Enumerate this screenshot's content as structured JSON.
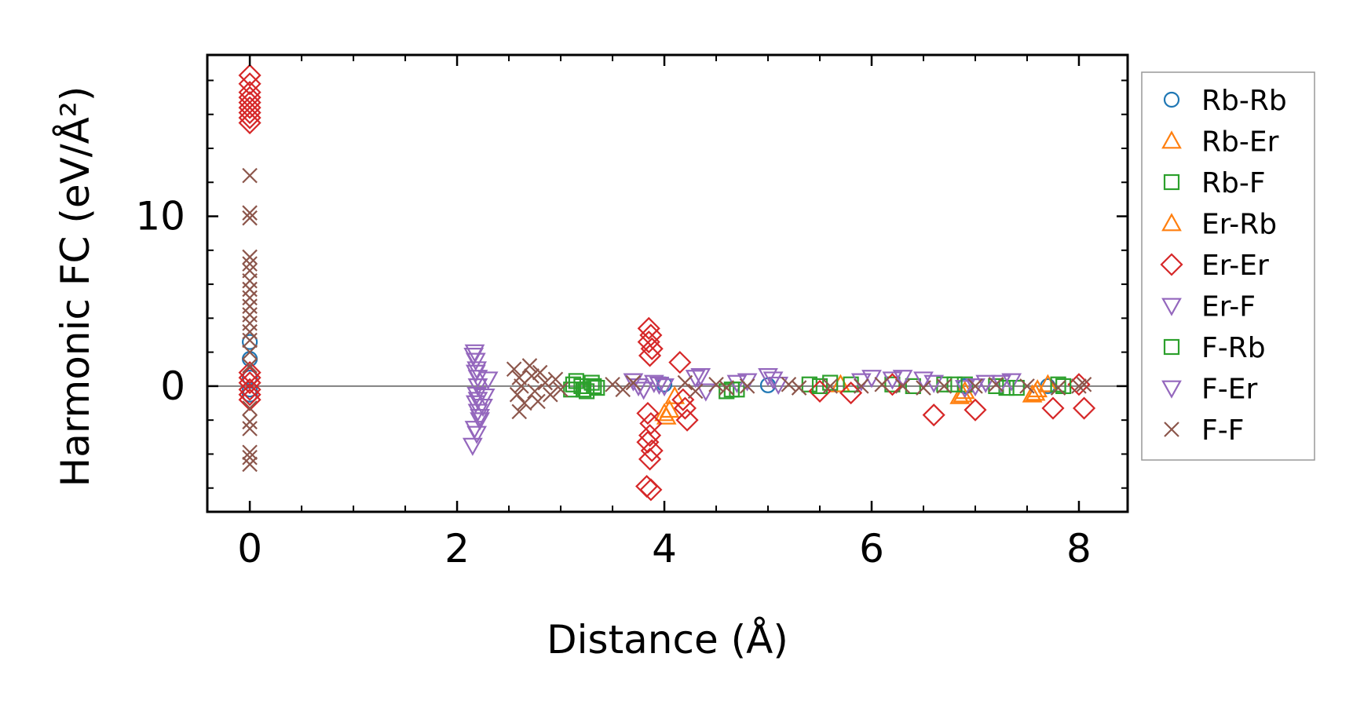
{
  "chart_data": {
    "type": "scatter",
    "title": "",
    "xlabel": "Distance (Å)",
    "ylabel": "Harmonic FC (eV/Å²)",
    "xlim": [
      -0.41,
      8.47
    ],
    "ylim": [
      -7.4,
      19.5
    ],
    "x_ticks": [
      0,
      2,
      4,
      6,
      8
    ],
    "x_tick_labels": [
      "0",
      "2",
      "4",
      "6",
      "8"
    ],
    "y_ticks": [
      0,
      10
    ],
    "y_tick_labels": [
      "0",
      "10"
    ],
    "zero_line": true,
    "grid": false,
    "legend_position": "right, outside plot",
    "series": [
      {
        "name": "Rb-Rb",
        "marker": "circle",
        "color": "#1f77b4",
        "points": [
          [
            0,
            2.6
          ],
          [
            0,
            1.6
          ],
          [
            0,
            0.5
          ],
          [
            0,
            -0.2
          ],
          [
            0,
            -0.5
          ],
          [
            4.0,
            0.1
          ],
          [
            5.0,
            0.05
          ],
          [
            6.9,
            0.0
          ],
          [
            7.7,
            0.0
          ]
        ]
      },
      {
        "name": "Rb-Er",
        "marker": "triangle-up",
        "color": "#ff7f0e",
        "points": [
          [
            4.02,
            -1.8
          ],
          [
            4.05,
            -1.4
          ],
          [
            6.85,
            -0.6
          ],
          [
            6.9,
            -0.3
          ],
          [
            7.55,
            -0.5
          ],
          [
            7.6,
            -0.2
          ],
          [
            7.7,
            0.1
          ],
          [
            4.1,
            -0.6
          ],
          [
            5.7,
            0.1
          ]
        ]
      },
      {
        "name": "Rb-F",
        "marker": "square",
        "color": "#2ca02c",
        "points": [
          [
            3.1,
            -0.2
          ],
          [
            3.15,
            0.3
          ],
          [
            3.2,
            0.0
          ],
          [
            3.25,
            -0.3
          ],
          [
            3.3,
            0.2
          ],
          [
            3.35,
            -0.1
          ],
          [
            4.6,
            -0.3
          ],
          [
            4.7,
            -0.2
          ],
          [
            5.4,
            0.1
          ],
          [
            5.6,
            0.2
          ],
          [
            5.8,
            0.1
          ],
          [
            6.2,
            0.1
          ],
          [
            6.4,
            0.0
          ],
          [
            6.7,
            0.1
          ],
          [
            6.9,
            0.1
          ],
          [
            7.2,
            0.0
          ],
          [
            7.4,
            -0.1
          ],
          [
            7.8,
            0.1
          ]
        ]
      },
      {
        "name": "Er-Rb",
        "marker": "triangle-up",
        "color": "#ff7f0e",
        "points": [
          [
            4.0,
            -1.6
          ],
          [
            6.88,
            -0.5
          ],
          [
            7.58,
            -0.4
          ]
        ]
      },
      {
        "name": "Er-Er",
        "marker": "diamond",
        "color": "#d62728",
        "points": [
          [
            0,
            18.3
          ],
          [
            0,
            17.8
          ],
          [
            0,
            17.3
          ],
          [
            0,
            17.0
          ],
          [
            0,
            16.7
          ],
          [
            0,
            16.4
          ],
          [
            0,
            16.1
          ],
          [
            0,
            15.8
          ],
          [
            0,
            15.5
          ],
          [
            0,
            0.8
          ],
          [
            0,
            0.5
          ],
          [
            0,
            0.2
          ],
          [
            0,
            -0.2
          ],
          [
            0,
            -0.5
          ],
          [
            0,
            -0.8
          ],
          [
            3.85,
            3.4
          ],
          [
            3.87,
            3.0
          ],
          [
            3.85,
            2.6
          ],
          [
            3.88,
            2.2
          ],
          [
            3.86,
            1.8
          ],
          [
            3.84,
            -1.6
          ],
          [
            3.87,
            -2.2
          ],
          [
            3.86,
            -2.9
          ],
          [
            3.84,
            -3.3
          ],
          [
            3.88,
            -3.8
          ],
          [
            3.86,
            -4.3
          ],
          [
            3.83,
            -5.9
          ],
          [
            3.87,
            -6.1
          ],
          [
            4.15,
            1.4
          ],
          [
            4.18,
            -0.8
          ],
          [
            4.2,
            -1.3
          ],
          [
            4.22,
            -2.0
          ],
          [
            5.5,
            -0.3
          ],
          [
            5.8,
            -0.4
          ],
          [
            6.6,
            -1.7
          ],
          [
            7.0,
            -1.4
          ],
          [
            7.75,
            -1.3
          ],
          [
            8.05,
            -1.3
          ],
          [
            8.0,
            0.1
          ],
          [
            6.2,
            0.1
          ]
        ]
      },
      {
        "name": "Er-F",
        "marker": "triangle-down",
        "color": "#9467bd",
        "points": [
          [
            2.17,
            2.0
          ],
          [
            2.18,
            1.5
          ],
          [
            2.19,
            1.0
          ],
          [
            2.2,
            0.5
          ],
          [
            2.2,
            0.0
          ],
          [
            2.19,
            -0.5
          ],
          [
            2.18,
            -1.0
          ],
          [
            2.2,
            -1.5
          ],
          [
            2.22,
            -2.0
          ],
          [
            2.17,
            -2.5
          ],
          [
            2.15,
            -3.5
          ],
          [
            2.25,
            -1.2
          ],
          [
            2.27,
            -0.6
          ],
          [
            2.3,
            0.4
          ],
          [
            3.7,
            0.3
          ],
          [
            3.8,
            -0.2
          ],
          [
            3.9,
            0.2
          ],
          [
            4.0,
            0.0
          ],
          [
            4.3,
            0.5
          ],
          [
            4.4,
            -0.3
          ],
          [
            4.7,
            0.2
          ],
          [
            5.0,
            0.6
          ],
          [
            5.1,
            0.1
          ],
          [
            6.0,
            0.5
          ],
          [
            6.2,
            0.4
          ],
          [
            6.5,
            0.4
          ],
          [
            6.9,
            -0.1
          ],
          [
            7.1,
            0.2
          ],
          [
            7.35,
            0.3
          ]
        ]
      },
      {
        "name": "F-Rb",
        "marker": "square",
        "color": "#2ca02c",
        "points": [
          [
            3.12,
            0.1
          ],
          [
            3.22,
            -0.2
          ],
          [
            3.32,
            0.0
          ],
          [
            4.65,
            -0.2
          ],
          [
            5.5,
            0.0
          ],
          [
            6.8,
            0.1
          ],
          [
            7.3,
            -0.1
          ],
          [
            7.85,
            0.0
          ]
        ]
      },
      {
        "name": "F-Er",
        "marker": "triangle-down",
        "color": "#9467bd",
        "points": [
          [
            2.16,
            1.8
          ],
          [
            2.18,
            0.8
          ],
          [
            2.2,
            -0.8
          ],
          [
            2.22,
            -1.8
          ],
          [
            2.19,
            -2.8
          ],
          [
            3.75,
            0.0
          ],
          [
            3.95,
            0.1
          ],
          [
            4.35,
            0.6
          ],
          [
            4.8,
            0.3
          ],
          [
            5.05,
            0.4
          ],
          [
            5.9,
            0.3
          ],
          [
            6.3,
            0.5
          ],
          [
            6.6,
            0.2
          ],
          [
            7.0,
            0.0
          ],
          [
            7.25,
            0.2
          ]
        ]
      },
      {
        "name": "F-F",
        "marker": "x",
        "color": "#8c564b",
        "points": [
          [
            0,
            12.4
          ],
          [
            0,
            10.2
          ],
          [
            0,
            9.9
          ],
          [
            0,
            7.6
          ],
          [
            0,
            7.2
          ],
          [
            0,
            6.8
          ],
          [
            0,
            6.2
          ],
          [
            0,
            5.7
          ],
          [
            0,
            5.2
          ],
          [
            0,
            4.7
          ],
          [
            0,
            4.2
          ],
          [
            0,
            3.7
          ],
          [
            0,
            3.2
          ],
          [
            0,
            2.7
          ],
          [
            0,
            2.0
          ],
          [
            0,
            1.2
          ],
          [
            0,
            -1.3
          ],
          [
            0,
            -2.1
          ],
          [
            0,
            -2.5
          ],
          [
            0,
            -3.9
          ],
          [
            0,
            -4.2
          ],
          [
            0,
            -4.6
          ],
          [
            2.55,
            1.0
          ],
          [
            2.6,
            0.5
          ],
          [
            2.62,
            0.0
          ],
          [
            2.58,
            -0.5
          ],
          [
            2.65,
            -1.0
          ],
          [
            2.6,
            -1.5
          ],
          [
            2.7,
            1.2
          ],
          [
            2.72,
            0.6
          ],
          [
            2.75,
            -0.3
          ],
          [
            2.78,
            -0.9
          ],
          [
            2.8,
            0.8
          ],
          [
            2.85,
            0.2
          ],
          [
            2.9,
            -0.5
          ],
          [
            2.95,
            0.4
          ],
          [
            3.0,
            -0.2
          ],
          [
            3.5,
            0.1
          ],
          [
            3.6,
            -0.2
          ],
          [
            3.7,
            0.2
          ],
          [
            4.2,
            0.2
          ],
          [
            4.3,
            -0.3
          ],
          [
            4.5,
            0.1
          ],
          [
            4.6,
            -0.1
          ],
          [
            4.8,
            0.0
          ],
          [
            5.2,
            0.1
          ],
          [
            5.3,
            -0.1
          ],
          [
            5.6,
            0.0
          ],
          [
            5.9,
            0.0
          ],
          [
            6.1,
            0.1
          ],
          [
            6.3,
            0.0
          ],
          [
            6.5,
            -0.1
          ],
          [
            6.7,
            0.0
          ],
          [
            7.0,
            0.0
          ],
          [
            7.2,
            0.1
          ],
          [
            7.5,
            0.0
          ],
          [
            7.8,
            -0.1
          ],
          [
            8.0,
            0.0
          ],
          [
            8.05,
            0.1
          ]
        ]
      }
    ]
  }
}
